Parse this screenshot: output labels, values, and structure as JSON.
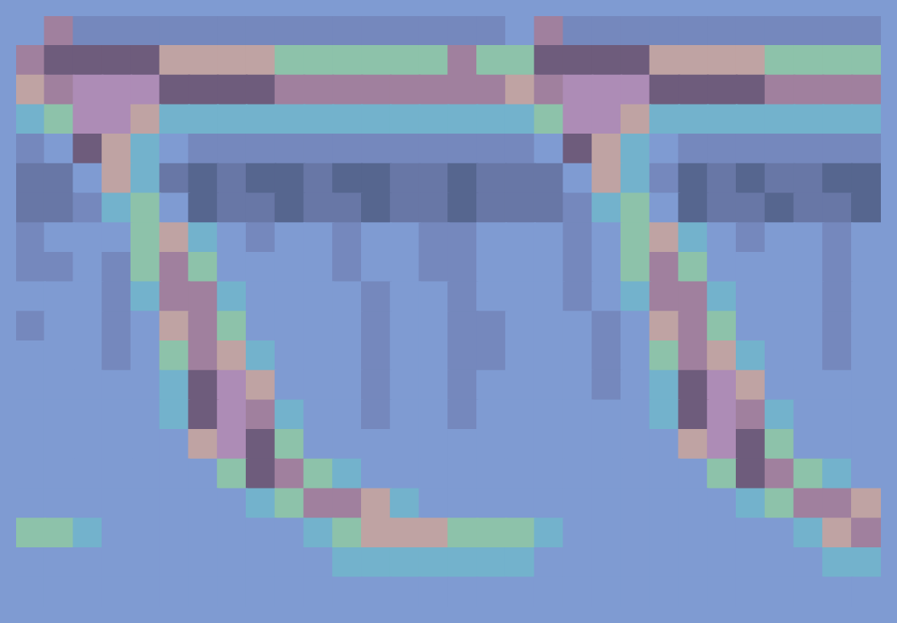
{
  "chart_data": {
    "type": "heatmap",
    "grid": false,
    "tick_labels": false,
    "cells": [
      [
        3,
        7,
        2,
        2,
        2,
        2,
        2,
        2,
        2,
        2,
        2,
        2,
        2,
        2,
        2,
        2,
        2,
        3,
        7,
        2,
        2,
        2,
        2,
        2,
        2,
        2,
        2,
        2,
        2,
        2
      ],
      [
        7,
        8,
        8,
        8,
        8,
        6,
        6,
        6,
        6,
        5,
        5,
        5,
        5,
        5,
        5,
        7,
        5,
        5,
        8,
        8,
        8,
        8,
        6,
        6,
        6,
        6,
        5,
        5,
        5,
        5
      ],
      [
        6,
        7,
        9,
        9,
        9,
        8,
        8,
        8,
        8,
        7,
        7,
        7,
        7,
        7,
        7,
        7,
        7,
        6,
        7,
        9,
        9,
        9,
        8,
        8,
        8,
        8,
        7,
        7,
        7,
        7
      ],
      [
        4,
        5,
        9,
        9,
        6,
        4,
        4,
        4,
        4,
        4,
        4,
        4,
        4,
        4,
        4,
        4,
        4,
        4,
        5,
        9,
        9,
        6,
        4,
        4,
        4,
        4,
        4,
        4,
        4,
        4
      ],
      [
        2,
        3,
        8,
        6,
        4,
        3,
        2,
        2,
        2,
        2,
        2,
        2,
        2,
        2,
        2,
        2,
        2,
        2,
        3,
        8,
        6,
        4,
        3,
        2,
        2,
        2,
        2,
        2,
        2,
        2
      ],
      [
        1,
        1,
        3,
        6,
        4,
        1,
        0,
        1,
        0,
        0,
        1,
        0,
        0,
        1,
        1,
        0,
        1,
        1,
        1,
        3,
        6,
        4,
        2,
        0,
        1,
        0,
        1,
        1,
        0,
        0
      ],
      [
        1,
        1,
        2,
        4,
        5,
        3,
        0,
        1,
        1,
        0,
        1,
        1,
        0,
        1,
        1,
        0,
        1,
        1,
        1,
        2,
        4,
        5,
        3,
        0,
        1,
        1,
        0,
        1,
        1,
        0
      ],
      [
        2,
        3,
        3,
        3,
        5,
        6,
        4,
        3,
        2,
        3,
        3,
        2,
        3,
        3,
        2,
        2,
        3,
        3,
        3,
        2,
        3,
        5,
        6,
        4,
        3,
        2,
        3,
        3,
        2,
        3
      ],
      [
        2,
        2,
        3,
        2,
        5,
        7,
        5,
        3,
        3,
        3,
        3,
        2,
        3,
        3,
        2,
        2,
        3,
        3,
        3,
        2,
        3,
        5,
        7,
        5,
        3,
        3,
        3,
        3,
        2,
        3
      ],
      [
        3,
        3,
        3,
        2,
        4,
        7,
        7,
        4,
        3,
        3,
        3,
        3,
        2,
        3,
        3,
        2,
        3,
        3,
        3,
        2,
        3,
        4,
        7,
        7,
        4,
        3,
        3,
        3,
        2,
        3
      ],
      [
        2,
        3,
        3,
        2,
        3,
        6,
        7,
        5,
        3,
        3,
        3,
        3,
        2,
        3,
        3,
        2,
        2,
        3,
        3,
        3,
        2,
        3,
        6,
        7,
        5,
        3,
        3,
        3,
        2,
        3
      ],
      [
        3,
        3,
        3,
        2,
        3,
        5,
        7,
        6,
        4,
        3,
        3,
        3,
        2,
        3,
        3,
        2,
        2,
        3,
        3,
        3,
        2,
        3,
        5,
        7,
        6,
        4,
        3,
        3,
        2,
        3
      ],
      [
        3,
        3,
        3,
        3,
        3,
        4,
        8,
        9,
        6,
        3,
        3,
        3,
        2,
        3,
        3,
        2,
        3,
        3,
        3,
        3,
        2,
        3,
        4,
        8,
        9,
        6,
        3,
        3,
        3,
        3
      ],
      [
        3,
        3,
        3,
        3,
        3,
        4,
        8,
        9,
        7,
        4,
        3,
        3,
        2,
        3,
        3,
        2,
        3,
        3,
        3,
        3,
        3,
        3,
        4,
        8,
        9,
        7,
        4,
        3,
        3,
        3
      ],
      [
        3,
        3,
        3,
        3,
        3,
        3,
        6,
        9,
        8,
        5,
        3,
        3,
        3,
        3,
        3,
        3,
        3,
        3,
        3,
        3,
        3,
        3,
        3,
        6,
        9,
        8,
        5,
        3,
        3,
        3
      ],
      [
        3,
        3,
        3,
        3,
        3,
        3,
        3,
        5,
        8,
        7,
        5,
        4,
        3,
        3,
        3,
        3,
        3,
        3,
        3,
        3,
        3,
        3,
        3,
        3,
        5,
        8,
        7,
        5,
        4,
        3
      ],
      [
        3,
        3,
        3,
        3,
        3,
        3,
        3,
        3,
        4,
        5,
        7,
        7,
        6,
        4,
        3,
        3,
        3,
        3,
        3,
        3,
        3,
        3,
        3,
        3,
        3,
        4,
        5,
        7,
        7,
        6
      ],
      [
        5,
        5,
        4,
        3,
        3,
        3,
        3,
        3,
        3,
        3,
        4,
        5,
        6,
        6,
        6,
        5,
        5,
        5,
        4,
        3,
        3,
        3,
        3,
        3,
        3,
        3,
        3,
        4,
        6,
        7
      ],
      [
        3,
        3,
        3,
        3,
        3,
        3,
        3,
        3,
        3,
        3,
        3,
        4,
        4,
        4,
        4,
        4,
        4,
        4,
        3,
        3,
        3,
        3,
        3,
        3,
        3,
        3,
        3,
        3,
        4,
        4
      ],
      [
        3,
        3,
        3,
        3,
        3,
        3,
        3,
        3,
        3,
        3,
        3,
        3,
        3,
        3,
        3,
        3,
        3,
        3,
        3,
        3,
        3,
        3,
        3,
        3,
        3,
        3,
        3,
        3,
        3,
        3
      ]
    ]
  }
}
